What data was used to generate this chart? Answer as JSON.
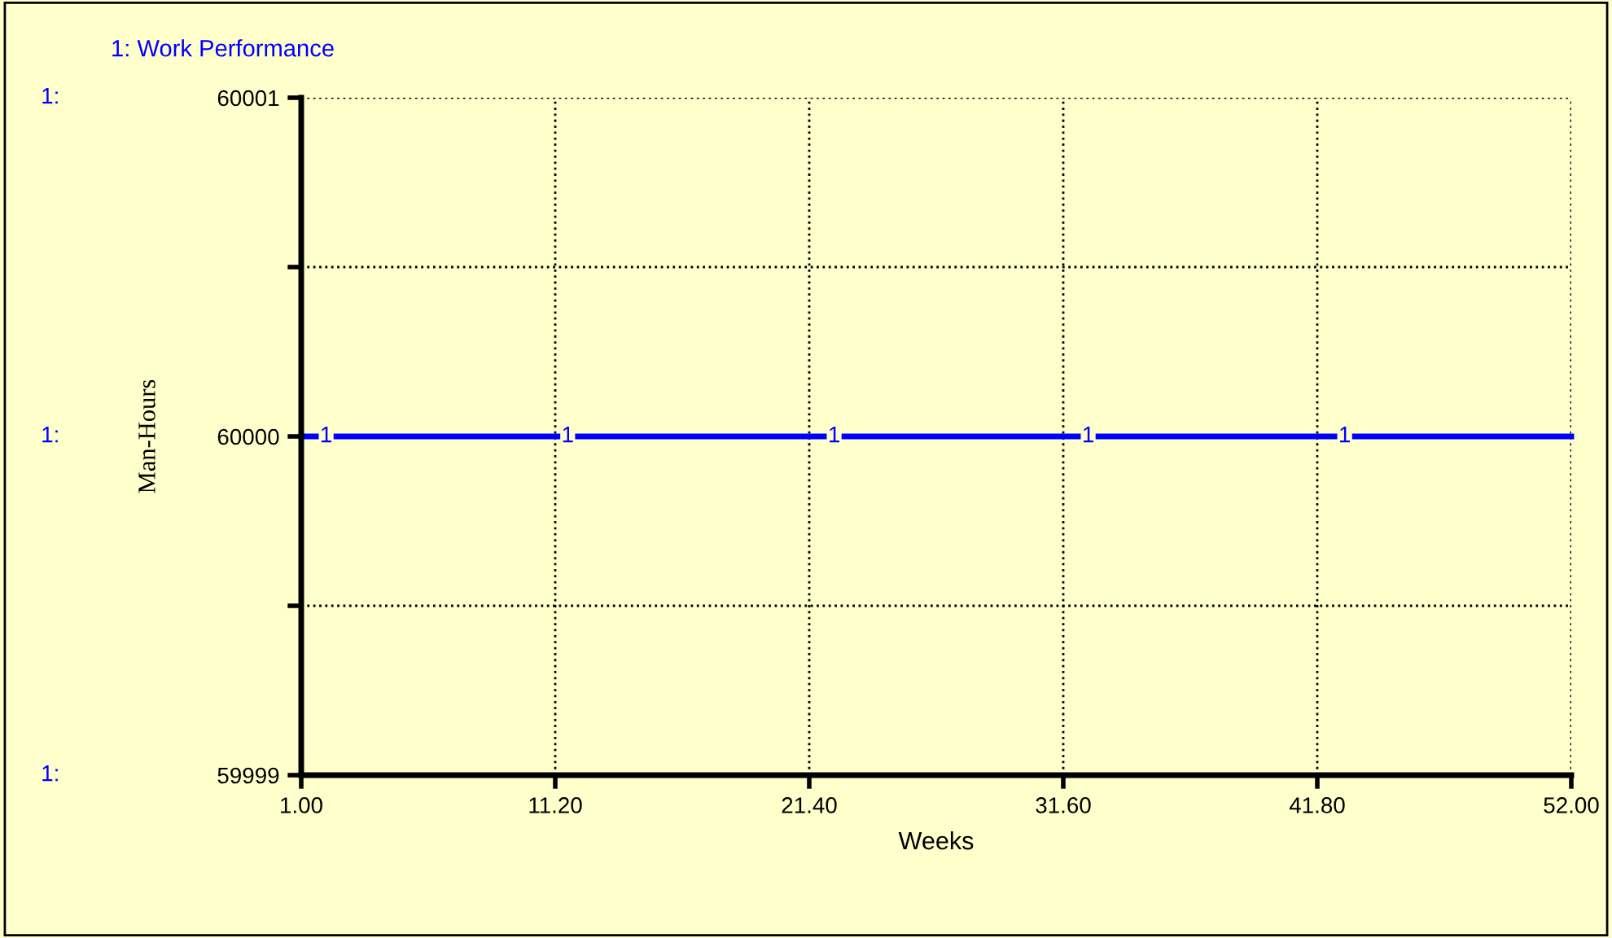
{
  "chart_data": {
    "type": "line",
    "xlabel": "Weeks",
    "ylabel": "Man-Hours",
    "x": [
      1,
      52
    ],
    "series": [
      {
        "name": "1: Work Performance",
        "color": "#0000ff",
        "values": [
          60000,
          60000
        ]
      }
    ],
    "xlim": [
      1,
      52
    ],
    "xticks": [
      {
        "value": 1,
        "label": "1.00"
      },
      {
        "value": 11.2,
        "label": "11.20"
      },
      {
        "value": 21.4,
        "label": "21.40"
      },
      {
        "value": 31.6,
        "label": "31.60"
      },
      {
        "value": 41.8,
        "label": "41.80"
      },
      {
        "value": 52,
        "label": "52.00"
      }
    ],
    "ylim": [
      59999,
      60001
    ],
    "yticks": [
      59999,
      {
        "value": 59999.5,
        "label": null
      },
      60000,
      {
        "value": 60000.5,
        "label": null
      },
      60001
    ],
    "annotations": [
      "1:",
      "1:",
      "1:",
      {
        "text": "1",
        "x": 2,
        "y": 60000
      },
      {
        "text": "1",
        "x": 11.7,
        "y": 60000
      },
      {
        "text": "1",
        "x": 22.4,
        "y": 60000
      },
      {
        "text": "1",
        "x": 32.6,
        "y": 60000
      },
      {
        "text": "1",
        "x": 42.9,
        "y": 60000
      }
    ],
    "grid": true,
    "legend": "top left",
    "line_style": "solid",
    "marker": "none"
  }
}
